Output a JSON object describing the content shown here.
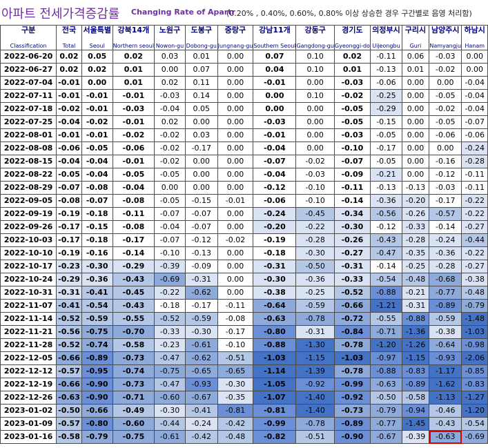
{
  "title": {
    "korean": "아파트 전세가격증감률",
    "english": "Changing Rate of Apartr",
    "note": "(0.20% , 0.40%, 0.60%, 0.80% 이상 상승한 경우 구간별로 음영 처리함)"
  },
  "columns": [
    {
      "ko": "구분",
      "en": "Classification"
    },
    {
      "ko": "전국",
      "en": "Total"
    },
    {
      "ko": "서울특별",
      "en": "Seoul"
    },
    {
      "ko": "강북14개",
      "en": "Northern seoul"
    },
    {
      "ko": "노원구",
      "en": "Nowon-gu"
    },
    {
      "ko": "도봉구",
      "en": "Dobong-gu"
    },
    {
      "ko": "중랑구",
      "en": "Jungnang-gu"
    },
    {
      "ko": "강남11개",
      "en": "Southern Seoul"
    },
    {
      "ko": "강동구",
      "en": "Gangdong-gu"
    },
    {
      "ko": "경기도",
      "en": "Gyeonggi-do"
    },
    {
      "ko": "의정부시",
      "en": "Uijeongbu"
    },
    {
      "ko": "구리시",
      "en": "Guri"
    },
    {
      "ko": "남양주시",
      "en": "Namyangju"
    },
    {
      "ko": "하남시",
      "en": "Hanam"
    }
  ],
  "rows": [
    {
      "date": "2022-06-20",
      "values": [
        "0.02",
        "0.05",
        "0.02",
        "0.03",
        "0.01",
        "0.00",
        "0.07",
        "0.10",
        "0.02",
        "-0.11",
        "0.06",
        "-0.03",
        "0.00"
      ]
    },
    {
      "date": "2022-06-27",
      "values": [
        "0.02",
        "0.02",
        "0.01",
        "0.00",
        "0.07",
        "0.00",
        "0.04",
        "0.10",
        "0.01",
        "-0.13",
        "0.01",
        "-0.02",
        "0.00"
      ]
    },
    {
      "date": "2022-07-04",
      "values": [
        "-0.01",
        "0.00",
        "0.01",
        "0.02",
        "0.11",
        "0.00",
        "-0.01",
        "0.00",
        "-0.03",
        "-0.06",
        "0.00",
        "0.00",
        "-0.04"
      ]
    },
    {
      "date": "2022-07-11",
      "values": [
        "-0.01",
        "-0.01",
        "-0.01",
        "-0.03",
        "0.14",
        "0.00",
        "0.00",
        "0.10",
        "-0.02",
        "-0.25",
        "0.00",
        "-0.05",
        "-0.04"
      ]
    },
    {
      "date": "2022-07-18",
      "values": [
        "-0.02",
        "-0.01",
        "-0.03",
        "-0.04",
        "0.05",
        "0.00",
        "0.00",
        "0.00",
        "-0.05",
        "-0.29",
        "0.00",
        "-0.02",
        "-0.04"
      ]
    },
    {
      "date": "2022-07-25",
      "values": [
        "-0.04",
        "-0.02",
        "-0.01",
        "0.02",
        "0.00",
        "0.00",
        "-0.03",
        "0.00",
        "-0.05",
        "-0.15",
        "0.00",
        "-0.05",
        "-0.07"
      ]
    },
    {
      "date": "2022-08-01",
      "values": [
        "-0.01",
        "-0.01",
        "-0.02",
        "-0.02",
        "0.03",
        "0.00",
        "-0.01",
        "0.00",
        "-0.03",
        "-0.05",
        "0.00",
        "-0.06",
        "-0.06"
      ]
    },
    {
      "date": "2022-08-08",
      "values": [
        "-0.06",
        "-0.05",
        "-0.06",
        "-0.02",
        "-0.17",
        "0.00",
        "-0.04",
        "0.00",
        "-0.10",
        "-0.17",
        "0.00",
        "0.00",
        "-0.24"
      ]
    },
    {
      "date": "2022-08-15",
      "values": [
        "-0.04",
        "-0.04",
        "-0.01",
        "-0.02",
        "0.00",
        "0.00",
        "-0.07",
        "-0.02",
        "-0.07",
        "-0.05",
        "0.00",
        "-0.16",
        "-0.28"
      ]
    },
    {
      "date": "2022-08-22",
      "values": [
        "-0.05",
        "-0.04",
        "-0.05",
        "-0.05",
        "0.00",
        "0.00",
        "-0.04",
        "-0.03",
        "-0.09",
        "-0.21",
        "0.00",
        "-0.12",
        "-0.11"
      ]
    },
    {
      "date": "2022-08-29",
      "values": [
        "-0.07",
        "-0.08",
        "-0.04",
        "0.00",
        "0.00",
        "0.00",
        "-0.12",
        "-0.10",
        "-0.11",
        "-0.13",
        "-0.13",
        "-0.03",
        "-0.11"
      ]
    },
    {
      "date": "2022-09-05",
      "values": [
        "-0.08",
        "-0.07",
        "-0.08",
        "-0.05",
        "-0.15",
        "-0.01",
        "-0.06",
        "-0.10",
        "-0.14",
        "-0.36",
        "-0.20",
        "-0.17",
        "-0.22"
      ]
    },
    {
      "date": "2022-09-19",
      "values": [
        "-0.19",
        "-0.18",
        "-0.11",
        "-0.07",
        "-0.07",
        "0.00",
        "-0.24",
        "-0.45",
        "-0.34",
        "-0.56",
        "-0.26",
        "-0.57",
        "-0.22"
      ]
    },
    {
      "date": "2022-09-26",
      "values": [
        "-0.17",
        "-0.15",
        "-0.08",
        "-0.04",
        "-0.07",
        "0.00",
        "-0.20",
        "-0.22",
        "-0.30",
        "-0.12",
        "-0.33",
        "-0.14",
        "-0.27"
      ]
    },
    {
      "date": "2022-10-03",
      "values": [
        "-0.17",
        "-0.18",
        "-0.17",
        "-0.07",
        "-0.12",
        "-0.02",
        "-0.19",
        "-0.28",
        "-0.26",
        "-0.43",
        "-0.28",
        "-0.24",
        "-0.44"
      ]
    },
    {
      "date": "2022-10-10",
      "values": [
        "-0.19",
        "-0.16",
        "-0.14",
        "-0.10",
        "-0.13",
        "0.00",
        "-0.18",
        "-0.30",
        "-0.27",
        "-0.47",
        "-0.35",
        "-0.36",
        "-0.22"
      ]
    },
    {
      "date": "2022-10-17",
      "values": [
        "-0.23",
        "-0.30",
        "-0.29",
        "-0.39",
        "-0.09",
        "0.00",
        "-0.31",
        "-0.50",
        "-0.31",
        "-0.14",
        "-0.25",
        "-0.28",
        "-0.27"
      ]
    },
    {
      "date": "2022-10-24",
      "values": [
        "-0.29",
        "-0.36",
        "-0.43",
        "-0.69",
        "-0.31",
        "0.00",
        "-0.30",
        "-0.36",
        "-0.33",
        "-0.54",
        "-0.48",
        "-0.68",
        "-0.38"
      ]
    },
    {
      "date": "2022-10-31",
      "values": [
        "-0.31",
        "-0.41",
        "-0.45",
        "-0.22",
        "-0.62",
        "0.00",
        "-0.38",
        "-0.25",
        "-0.52",
        "-0.88",
        "-0.21",
        "-0.77",
        "-0.48"
      ]
    },
    {
      "date": "2022-11-07",
      "values": [
        "-0.41",
        "-0.54",
        "-0.43",
        "-0.18",
        "-0.17",
        "-0.11",
        "-0.64",
        "-0.59",
        "-0.66",
        "-1.21",
        "-0.31",
        "-0.89",
        "-0.79"
      ]
    },
    {
      "date": "2022-11-14",
      "values": [
        "-0.52",
        "-0.59",
        "-0.55",
        "-0.52",
        "-0.59",
        "-0.08",
        "-0.63",
        "-0.78",
        "-0.72",
        "-0.55",
        "-0.88",
        "-0.59",
        "-1.48"
      ]
    },
    {
      "date": "2022-11-21",
      "values": [
        "-0.56",
        "-0.75",
        "-0.70",
        "-0.33",
        "-0.30",
        "-0.17",
        "-0.80",
        "-0.31",
        "-0.84",
        "-0.71",
        "-1.36",
        "-0.38",
        "-1.03"
      ]
    },
    {
      "date": "2022-11-28",
      "values": [
        "-0.52",
        "-0.74",
        "-0.58",
        "-0.23",
        "-0.61",
        "-0.10",
        "-0.88",
        "-1.30",
        "-0.78",
        "-1.20",
        "-1.26",
        "-0.64",
        "-0.98"
      ]
    },
    {
      "date": "2022-12-05",
      "values": [
        "-0.66",
        "-0.89",
        "-0.73",
        "-0.47",
        "-0.62",
        "-0.51",
        "-1.03",
        "-1.15",
        "-1.03",
        "-0.97",
        "-1.15",
        "-0.93",
        "-2.06"
      ]
    },
    {
      "date": "2022-12-12",
      "values": [
        "-0.57",
        "-0.95",
        "-0.74",
        "-0.75",
        "-0.65",
        "-0.65",
        "-1.14",
        "-1.39",
        "-0.78",
        "-0.88",
        "-0.83",
        "-1.17",
        "-0.85"
      ]
    },
    {
      "date": "2022-12-19",
      "values": [
        "-0.66",
        "-0.90",
        "-0.73",
        "-0.47",
        "-0.93",
        "-0.30",
        "-1.05",
        "-0.92",
        "-0.99",
        "-0.63",
        "-0.89",
        "-1.62",
        "-0.83"
      ]
    },
    {
      "date": "2022-12-26",
      "values": [
        "-0.63",
        "-0.90",
        "-0.71",
        "-0.60",
        "-0.67",
        "-0.35",
        "-1.07",
        "-1.40",
        "-0.92",
        "-0.50",
        "-0.58",
        "-1.13",
        "-1.27"
      ]
    },
    {
      "date": "2023-01-02",
      "values": [
        "-0.50",
        "-0.66",
        "-0.49",
        "-0.30",
        "-0.41",
        "-0.81",
        "-0.81",
        "-1.40",
        "-0.73",
        "-0.79",
        "-0.94",
        "-0.46",
        "-1.20"
      ]
    },
    {
      "date": "2023-01-09",
      "values": [
        "-0.57",
        "-0.80",
        "-0.60",
        "-0.44",
        "-0.24",
        "-0.42",
        "-0.99",
        "-0.78",
        "-0.89",
        "-0.77",
        "-1.45",
        "-0.43",
        "-0.54"
      ]
    },
    {
      "date": "2023-01-16",
      "values": [
        "-0.58",
        "-0.79",
        "-0.75",
        "-0.61",
        "-0.42",
        "-0.48",
        "-0.82",
        "-0.51",
        "-0.90",
        "-0.67",
        "-0.39",
        "-0.63",
        "-0.69"
      ]
    }
  ],
  "bold_columns": [
    0,
    1,
    2,
    6,
    8
  ],
  "highlighted_cell": {
    "row": 29,
    "col": 11,
    "color": "#e00000"
  },
  "shade_colors": {
    "none": "#ffffff",
    "level1": "#dae3f3",
    "level2": "#b4c7e7",
    "level3": "#8eaadb",
    "level4": "#6b8fd6",
    "level5": "#4472c4"
  }
}
